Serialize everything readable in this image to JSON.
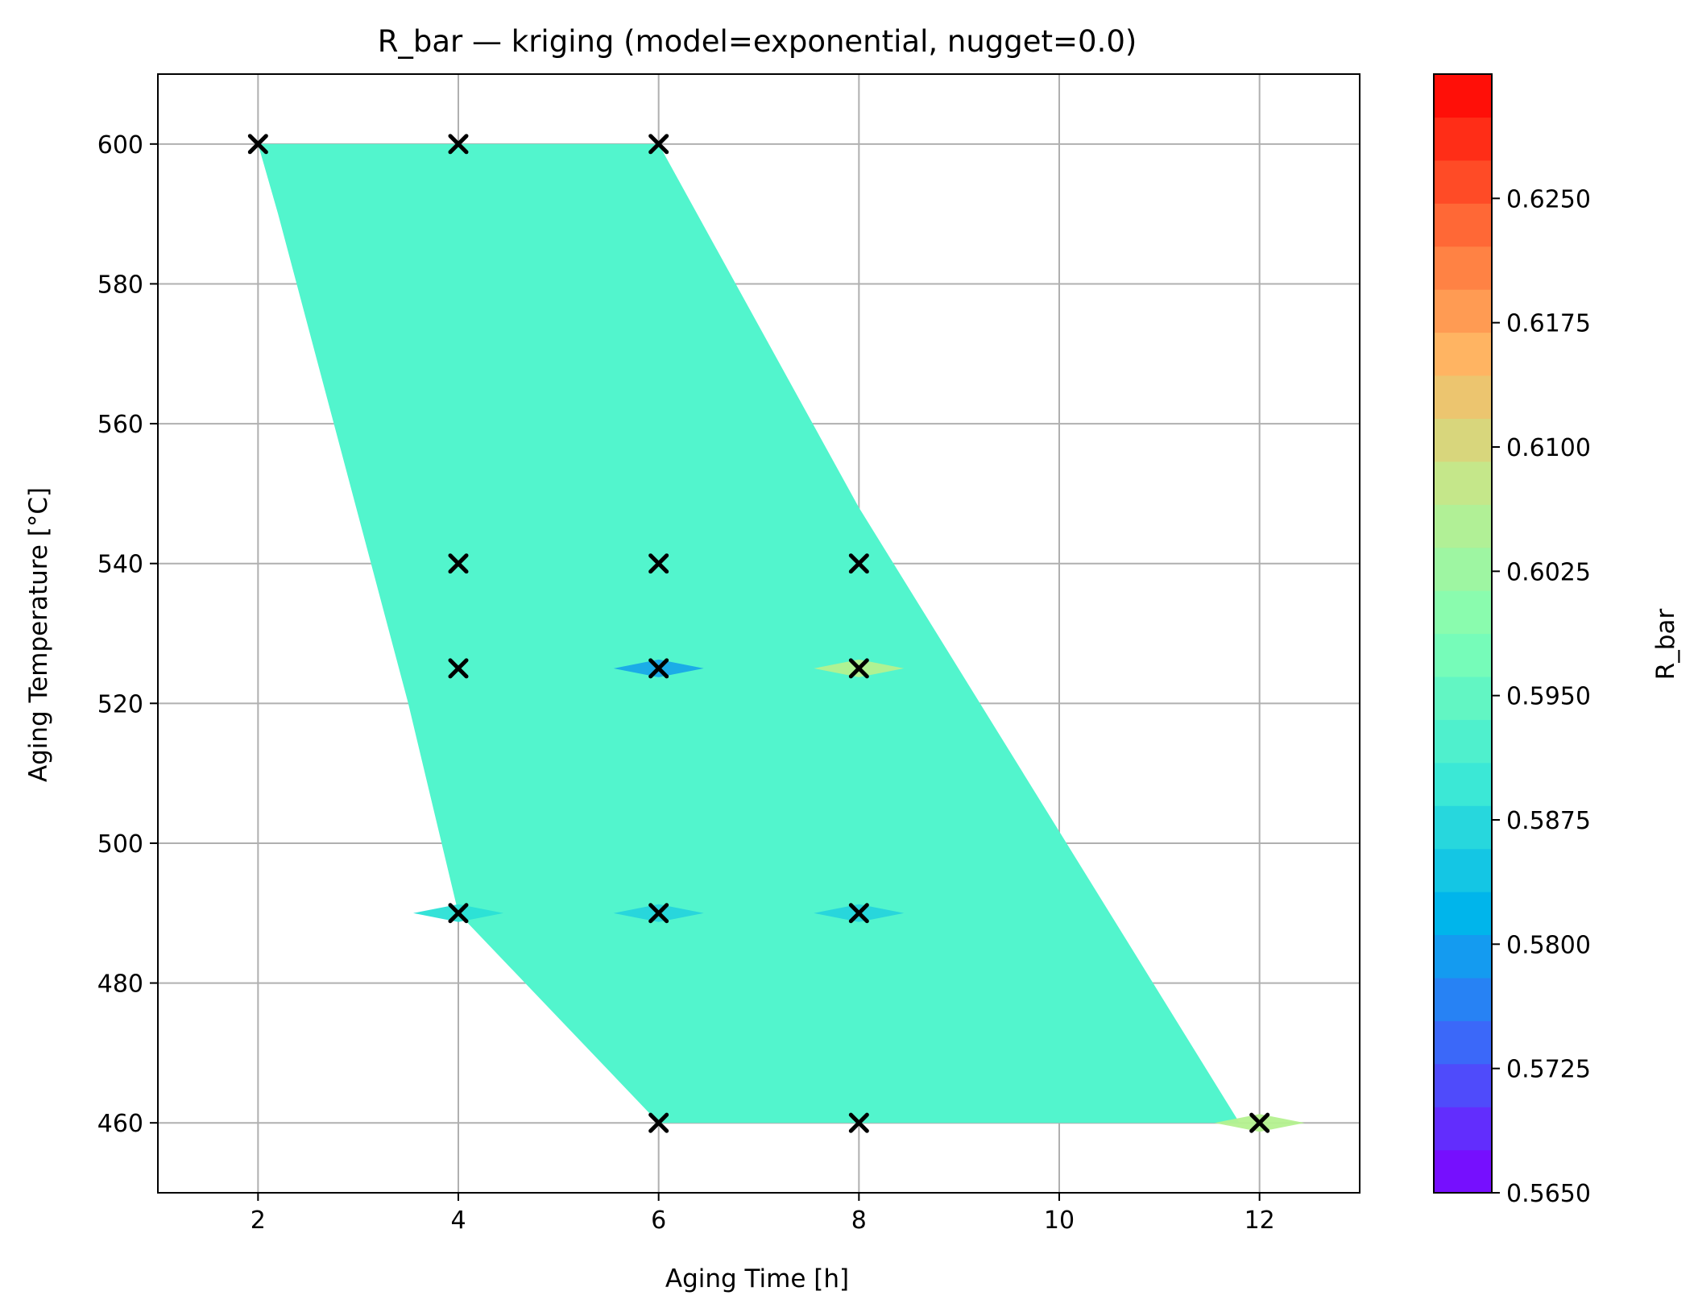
{
  "chart_data": {
    "type": "heatmap",
    "title": "R_bar — kriging (model=exponential, nugget=0.0)",
    "xlabel": "Aging Time [h]",
    "ylabel": "Aging Temperature [°C]",
    "xlim": [
      1,
      13
    ],
    "ylim": [
      450,
      610
    ],
    "x_ticks": [
      "2",
      "4",
      "6",
      "8",
      "10",
      "12"
    ],
    "y_ticks": [
      "460",
      "480",
      "500",
      "520",
      "540",
      "560",
      "580",
      "600"
    ],
    "grid": true,
    "field": {
      "base_value": 0.5925,
      "base_color": "#52f5cd",
      "region_polygon": [
        [
          2.0,
          600
        ],
        [
          6.0,
          600
        ],
        [
          8.0,
          548
        ],
        [
          11.8,
          460
        ],
        [
          6.0,
          460
        ],
        [
          4.0,
          490
        ],
        [
          3.5,
          520
        ],
        [
          2.2,
          590
        ]
      ],
      "local_features": [
        {
          "x": 6,
          "y": 525,
          "value": 0.582,
          "color": "#18a8e8"
        },
        {
          "x": 8,
          "y": 525,
          "value": 0.602,
          "color": "#b4f18f"
        },
        {
          "x": 6,
          "y": 490,
          "value": 0.588,
          "color": "#26d4dc"
        },
        {
          "x": 8,
          "y": 490,
          "value": 0.588,
          "color": "#26d4dc"
        },
        {
          "x": 4,
          "y": 490,
          "value": 0.589,
          "color": "#2ae0d6"
        },
        {
          "x": 12,
          "y": 460,
          "value": 0.603,
          "color": "#b4f18f"
        }
      ]
    },
    "sample_points": [
      {
        "x": 2,
        "y": 600
      },
      {
        "x": 4,
        "y": 600
      },
      {
        "x": 6,
        "y": 600
      },
      {
        "x": 4,
        "y": 540
      },
      {
        "x": 6,
        "y": 540
      },
      {
        "x": 8,
        "y": 540
      },
      {
        "x": 4,
        "y": 525
      },
      {
        "x": 6,
        "y": 525
      },
      {
        "x": 8,
        "y": 525
      },
      {
        "x": 4,
        "y": 490
      },
      {
        "x": 6,
        "y": 490
      },
      {
        "x": 8,
        "y": 490
      },
      {
        "x": 6,
        "y": 460
      },
      {
        "x": 8,
        "y": 460
      },
      {
        "x": 12,
        "y": 460
      }
    ],
    "colorbar": {
      "label": "R_bar",
      "min": 0.565,
      "max": 0.6325,
      "ticks": [
        "0.5650",
        "0.5725",
        "0.5800",
        "0.5875",
        "0.5950",
        "0.6025",
        "0.6100",
        "0.6175",
        "0.6250"
      ],
      "levels": 26,
      "colormap": "rainbow",
      "colormap_stops": [
        "#8000ff",
        "#4062fa",
        "#00b5eb",
        "#40ecd4",
        "#80ffb4",
        "#c0eb8d",
        "#ffb462",
        "#ff6232",
        "#ff0000"
      ]
    }
  }
}
